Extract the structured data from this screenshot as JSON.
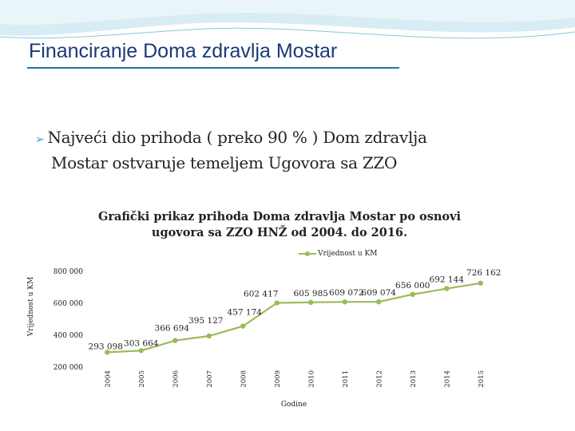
{
  "slide": {
    "title": "Financiranje Doma zdravlja Mostar",
    "bullet_line1": "Najveći dio prihoda ( preko 90 % ) Dom zdravlja",
    "bullet_line2": "Mostar  ostvaruje temeljem Ugovora sa ZZO"
  },
  "chart_data": {
    "type": "line",
    "title_line1": "Grafički prikaz prihoda Doma zdravlja Mostar po osnovi",
    "title_line2": "ugovora sa ZZO HNŽ od 2004. do 2016.",
    "xlabel": "Godine",
    "ylabel": "Vrijednost u KM",
    "legend": "Vrijednost u KM",
    "legend_placement": "top",
    "line_color": "#9bbb59",
    "categories": [
      "2004",
      "2005",
      "2006",
      "2007",
      "2008",
      "2009",
      "2010",
      "2011",
      "2012",
      "2013",
      "2014",
      "2015"
    ],
    "values": [
      293098,
      303664,
      366694,
      395127,
      457174,
      602417,
      605985,
      609072,
      609074,
      656000,
      692144,
      726162
    ],
    "data_labels": [
      "293 098",
      "303 664",
      "366 694",
      "395 127",
      "457 174",
      "602 417",
      "605 985",
      "609 072",
      "609 074",
      "656 000",
      "692 144",
      "726 162"
    ],
    "yticks": [
      200000,
      400000,
      600000,
      800000
    ],
    "ytick_labels": [
      "200 000",
      "400 000",
      "600 000",
      "800 000"
    ],
    "ylim": [
      200000,
      800000
    ],
    "grid": false
  }
}
